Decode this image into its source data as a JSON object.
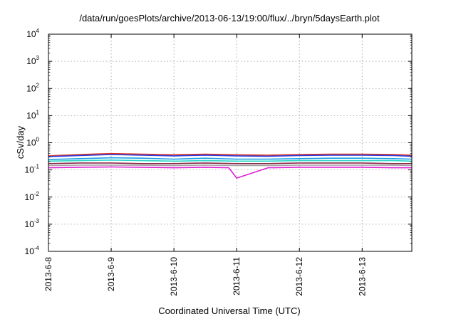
{
  "chart_data": {
    "type": "line",
    "title": "/data/run/goesPlots/archive/2013-06-13/19:00/flux/../bryn/5daysEarth.plot",
    "xlabel": "Coordinated Universal Time (UTC)",
    "ylabel": "cSv/day",
    "y_scale": "log",
    "ylim": [
      0.0001,
      10000
    ],
    "xlim": [
      "2013-06-08T00:00",
      "2013-06-13T19:00"
    ],
    "grid": true,
    "y_ticks": [
      {
        "value": 0.0001,
        "base": "10",
        "exp": "-4"
      },
      {
        "value": 0.001,
        "base": "10",
        "exp": "-3"
      },
      {
        "value": 0.01,
        "base": "10",
        "exp": "-2"
      },
      {
        "value": 0.1,
        "base": "10",
        "exp": "-1"
      },
      {
        "value": 1,
        "base": "10",
        "exp": "0"
      },
      {
        "value": 10,
        "base": "10",
        "exp": "1"
      },
      {
        "value": 100,
        "base": "10",
        "exp": "2"
      },
      {
        "value": 1000,
        "base": "10",
        "exp": "3"
      },
      {
        "value": 10000,
        "base": "10",
        "exp": "4"
      }
    ],
    "x_ticks": [
      {
        "value": "2013-06-08T00:00",
        "label": "2013-6-8"
      },
      {
        "value": "2013-06-09T00:00",
        "label": "2013-6-9"
      },
      {
        "value": "2013-06-10T00:00",
        "label": "2013-6-10"
      },
      {
        "value": "2013-06-11T00:00",
        "label": "2013-6-11"
      },
      {
        "value": "2013-06-12T00:00",
        "label": "2013-6-12"
      },
      {
        "value": "2013-06-13T00:00",
        "label": "2013-6-13"
      }
    ],
    "series": [
      {
        "color": "#e0301e",
        "x": [
          "2013-06-08T00:00",
          "2013-06-08T12:00",
          "2013-06-09T00:00",
          "2013-06-09T12:00",
          "2013-06-10T00:00",
          "2013-06-10T12:00",
          "2013-06-11T00:00",
          "2013-06-11T12:00",
          "2013-06-12T00:00",
          "2013-06-12T12:00",
          "2013-06-13T00:00",
          "2013-06-13T12:00",
          "2013-06-13T19:00"
        ],
        "y": [
          0.33,
          0.37,
          0.4,
          0.38,
          0.36,
          0.38,
          0.36,
          0.35,
          0.37,
          0.38,
          0.38,
          0.37,
          0.35
        ]
      },
      {
        "color": "#2a3de0",
        "x": [
          "2013-06-08T00:00",
          "2013-06-08T12:00",
          "2013-06-09T00:00",
          "2013-06-09T12:00",
          "2013-06-10T00:00",
          "2013-06-10T12:00",
          "2013-06-11T00:00",
          "2013-06-11T12:00",
          "2013-06-12T00:00",
          "2013-06-12T12:00",
          "2013-06-13T00:00",
          "2013-06-13T12:00",
          "2013-06-13T19:00"
        ],
        "y": [
          0.31,
          0.34,
          0.37,
          0.35,
          0.33,
          0.35,
          0.33,
          0.32,
          0.34,
          0.35,
          0.35,
          0.34,
          0.32
        ]
      },
      {
        "color": "#1ea0e6",
        "x": [
          "2013-06-08T00:00",
          "2013-06-08T12:00",
          "2013-06-09T00:00",
          "2013-06-09T12:00",
          "2013-06-10T00:00",
          "2013-06-10T12:00",
          "2013-06-11T00:00",
          "2013-06-11T12:00",
          "2013-06-12T00:00",
          "2013-06-12T12:00",
          "2013-06-13T00:00",
          "2013-06-13T12:00",
          "2013-06-13T19:00"
        ],
        "y": [
          0.24,
          0.26,
          0.28,
          0.27,
          0.25,
          0.27,
          0.25,
          0.25,
          0.26,
          0.27,
          0.27,
          0.26,
          0.25
        ]
      },
      {
        "color": "#27d6c8",
        "x": [
          "2013-06-08T00:00",
          "2013-06-08T12:00",
          "2013-06-09T00:00",
          "2013-06-09T12:00",
          "2013-06-10T00:00",
          "2013-06-10T12:00",
          "2013-06-11T00:00",
          "2013-06-11T12:00",
          "2013-06-12T00:00",
          "2013-06-12T12:00",
          "2013-06-13T00:00",
          "2013-06-13T12:00",
          "2013-06-13T19:00"
        ],
        "y": [
          0.21,
          0.22,
          0.23,
          0.22,
          0.21,
          0.22,
          0.21,
          0.21,
          0.22,
          0.22,
          0.22,
          0.22,
          0.21
        ]
      },
      {
        "color": "#8a2a4a",
        "x": [
          "2013-06-08T00:00",
          "2013-06-08T12:00",
          "2013-06-09T00:00",
          "2013-06-09T12:00",
          "2013-06-10T00:00",
          "2013-06-10T12:00",
          "2013-06-11T00:00",
          "2013-06-11T12:00",
          "2013-06-12T00:00",
          "2013-06-12T12:00",
          "2013-06-13T00:00",
          "2013-06-13T12:00",
          "2013-06-13T19:00"
        ],
        "y": [
          0.17,
          0.18,
          0.18,
          0.17,
          0.17,
          0.18,
          0.17,
          0.17,
          0.18,
          0.18,
          0.18,
          0.17,
          0.17
        ]
      },
      {
        "color": "#a0a0a0",
        "x": [
          "2013-06-08T00:00",
          "2013-06-08T12:00",
          "2013-06-09T00:00",
          "2013-06-09T12:00",
          "2013-06-10T00:00",
          "2013-06-10T12:00",
          "2013-06-11T00:00",
          "2013-06-11T12:00",
          "2013-06-12T00:00",
          "2013-06-12T12:00",
          "2013-06-13T00:00",
          "2013-06-13T12:00",
          "2013-06-13T19:00"
        ],
        "y": [
          0.145,
          0.15,
          0.15,
          0.148,
          0.145,
          0.15,
          0.145,
          0.145,
          0.15,
          0.15,
          0.15,
          0.148,
          0.145
        ]
      },
      {
        "color": "#e020d6",
        "x": [
          "2013-06-08T00:00",
          "2013-06-08T12:00",
          "2013-06-09T00:00",
          "2013-06-09T12:00",
          "2013-06-10T00:00",
          "2013-06-10T12:00",
          "2013-06-10T21:00",
          "2013-06-11T00:00",
          "2013-06-11T12:00",
          "2013-06-12T00:00",
          "2013-06-12T12:00",
          "2013-06-13T00:00",
          "2013-06-13T12:00",
          "2013-06-13T19:00"
        ],
        "y": [
          0.12,
          0.125,
          0.128,
          0.125,
          0.12,
          0.125,
          0.12,
          0.05,
          0.12,
          0.125,
          0.125,
          0.125,
          0.12,
          0.12
        ]
      }
    ]
  }
}
